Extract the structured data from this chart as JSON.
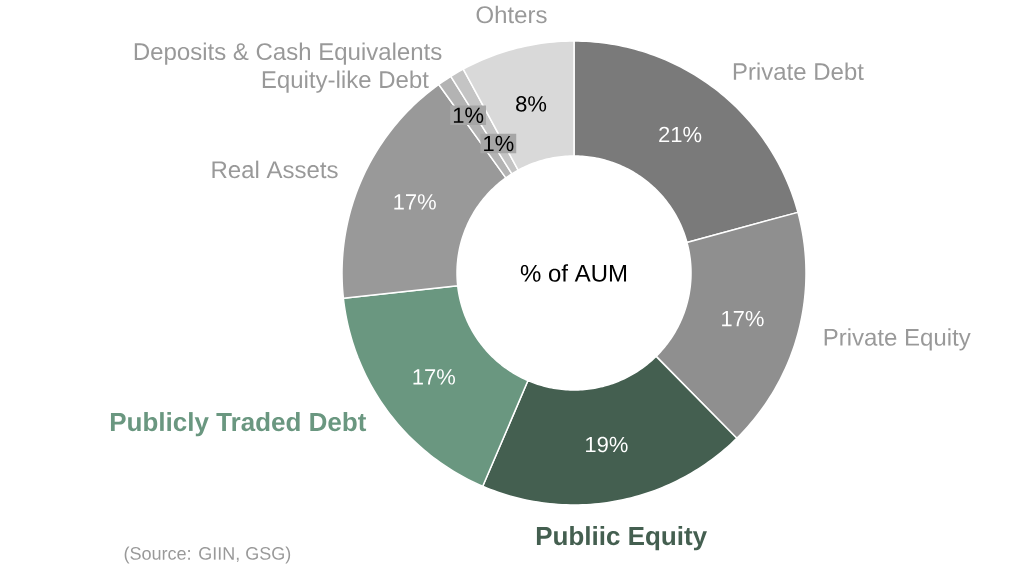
{
  "chart_data": {
    "type": "donut",
    "categories": [
      "Private Debt",
      "Private Equity",
      "Publiic Equity",
      "Publicly Traded Debt",
      "Real Assets",
      "Equity-like Debt",
      "Deposits & Cash Equivalents",
      "Ohters"
    ],
    "values": [
      21,
      17,
      19,
      17,
      17,
      1,
      1,
      8
    ],
    "colors": [
      "#7a7a7a",
      "#8f8f8f",
      "#445f50",
      "#6a9780",
      "#999999",
      "#b3b3b3",
      "#c4c4c4",
      "#d9d9d9"
    ],
    "value_labels": [
      "21%",
      "17%",
      "19%",
      "17%",
      "17%",
      "1%",
      "1%",
      "8%"
    ],
    "annotations": [
      "% of AUM",
      "(Source: GIIN, GSG)"
    ]
  }
}
